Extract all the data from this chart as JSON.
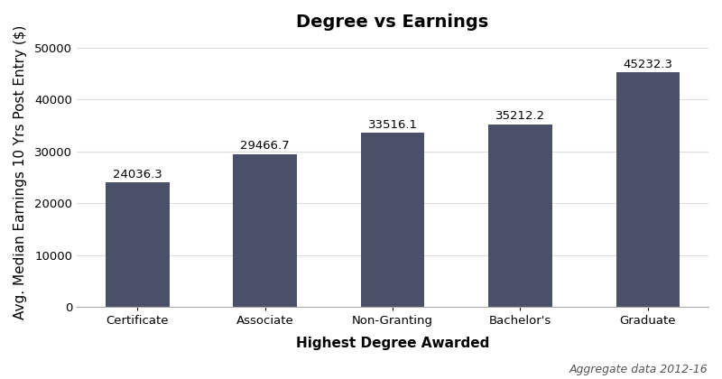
{
  "title": "Degree vs Earnings",
  "categories": [
    "Certificate",
    "Associate",
    "Non-Granting",
    "Bachelor's",
    "Graduate"
  ],
  "values": [
    24036.3,
    29466.7,
    33516.1,
    35212.2,
    45232.3
  ],
  "bar_color": "#4a5068",
  "xlabel": "Highest Degree Awarded",
  "ylabel": "Avg. Median Earnings 10 Yrs Post Entry ($)",
  "ylim": [
    0,
    52000
  ],
  "yticks": [
    0,
    10000,
    20000,
    30000,
    40000,
    50000
  ],
  "annotation_fontsize": 9.5,
  "title_fontsize": 14,
  "axis_label_fontsize": 11,
  "tick_fontsize": 9.5,
  "footnote": "Aggregate data 2012-16",
  "footnote_fontsize": 9,
  "background_color": "#ffffff",
  "bar_width": 0.5
}
